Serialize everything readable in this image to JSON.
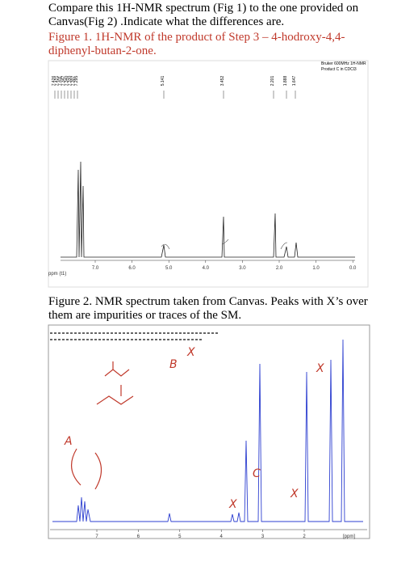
{
  "instructions": "Compare this 1H-NMR spectrum (Fig 1) to the one provided on Canvas(Fig 2) .Indicate what the differences are.",
  "figure1": {
    "caption": "Figure 1. 1H-NMR of the product of Step 3 – 4-hodroxy-4,4-diphenyl-butan-2-one.",
    "instrument": [
      "Bruker 600MHz 1H-NMR",
      "Product C in CDCl3"
    ],
    "peak_labels": [
      "7.426",
      "7.421",
      "7.411",
      "7.347",
      "7.340",
      "7.330",
      "7.307",
      "7.295",
      "5.141",
      "3.452",
      "2.201",
      "1.888",
      "1.647"
    ],
    "axis_ticks": [
      "7.0",
      "6.0",
      "5.0",
      "4.0",
      "3.0",
      "2.0",
      "1.0",
      "0.0"
    ],
    "axis_unit": "ppm (t1)"
  },
  "figure2": {
    "caption": "Figure 2. NMR spectrum taken from Canvas. Peaks with X’s over them are impurities or traces of the SM.",
    "axis_ticks": [
      "7",
      "6",
      "5",
      "4",
      "3",
      "2"
    ],
    "axis_unit": "[ppm]",
    "annotations": [
      "A",
      "B",
      "C",
      "X"
    ]
  }
}
